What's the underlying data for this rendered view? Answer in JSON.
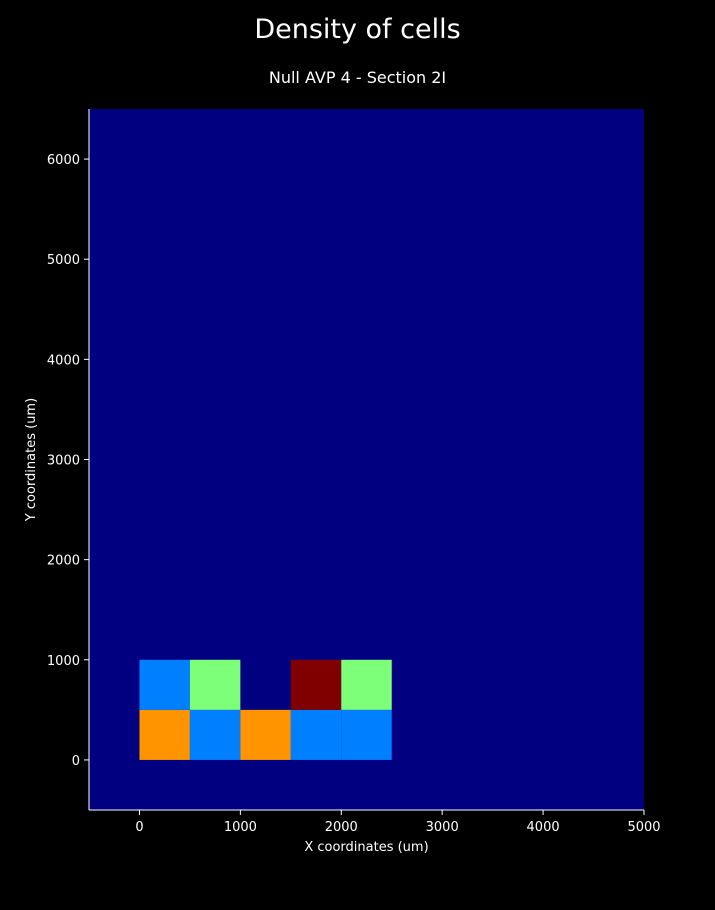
{
  "figure": {
    "suptitle": "Density of cells"
  },
  "chart_data": {
    "type": "heatmap",
    "title": "Null AVP 4 - Section 2I",
    "xlabel": "X coordinates (um)",
    "ylabel": "Y coordinates (um)",
    "xlim": [
      -500,
      5000
    ],
    "ylim": [
      -500,
      6500
    ],
    "x_ticks": [
      0,
      1000,
      2000,
      3000,
      4000,
      5000
    ],
    "y_ticks": [
      0,
      1000,
      2000,
      3000,
      4000,
      5000,
      6000
    ],
    "background_color": "#000080",
    "bin_size": 500,
    "cells": [
      {
        "x0": 0,
        "x1": 500,
        "y0": 0,
        "y1": 500,
        "color": "#ff9400"
      },
      {
        "x0": 500,
        "x1": 1000,
        "y0": 0,
        "y1": 500,
        "color": "#0080ff"
      },
      {
        "x0": 1000,
        "x1": 1500,
        "y0": 0,
        "y1": 500,
        "color": "#ff9400"
      },
      {
        "x0": 1500,
        "x1": 2000,
        "y0": 0,
        "y1": 500,
        "color": "#0080ff"
      },
      {
        "x0": 2000,
        "x1": 2500,
        "y0": 0,
        "y1": 500,
        "color": "#0080ff"
      },
      {
        "x0": 0,
        "x1": 500,
        "y0": 500,
        "y1": 1000,
        "color": "#0080ff"
      },
      {
        "x0": 500,
        "x1": 1000,
        "y0": 500,
        "y1": 1000,
        "color": "#7dff7a"
      },
      {
        "x0": 1500,
        "x1": 2000,
        "y0": 500,
        "y1": 1000,
        "color": "#800000"
      },
      {
        "x0": 2000,
        "x1": 2500,
        "y0": 500,
        "y1": 1000,
        "color": "#7dff7a"
      }
    ],
    "grid": false,
    "legend": "none",
    "colormap": "jet"
  }
}
